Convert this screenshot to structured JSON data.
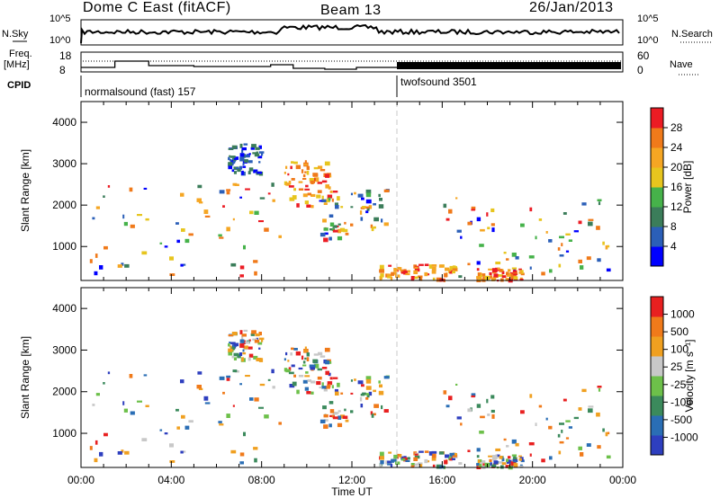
{
  "header": {
    "radar": "Dome C East (fitACF)",
    "beam": "Beam 13",
    "date": "26/Jan/2013"
  },
  "panels": {
    "nsky_label": "N.Sky",
    "nsky_ticks": [
      "10^5",
      "10^0"
    ],
    "nsearch_label": "N.Search",
    "nsearch_ticks": [
      "10^5",
      "10^0"
    ],
    "freq_label": "Freq.",
    "freq_unit": "[MHz]",
    "freq_ticks": [
      "18",
      "8"
    ],
    "nave_label": "Nave",
    "nave_ticks": [
      "60",
      "0"
    ],
    "cpid_label": "CPID",
    "cpid_modes": [
      "normalsound (fast) 157",
      "twofsound 3501"
    ]
  },
  "power_colorbar": {
    "label": "Power [dB]",
    "ticks": [
      "28",
      "24",
      "20",
      "16",
      "12",
      "8",
      "4"
    ],
    "colors": [
      "#0000ff",
      "#2b5fb8",
      "#3b7d5a",
      "#46b24a",
      "#e7c51e",
      "#f5a623",
      "#f07a1a",
      "#ec1c24"
    ]
  },
  "velocity_colorbar": {
    "label": "Velocity [m s⁻¹]",
    "ticks": [
      "1000",
      "500",
      "100",
      "25",
      "-25",
      "-100",
      "-500",
      "-1000"
    ],
    "colors": [
      "#2e3fbf",
      "#2a6eb5",
      "#3b8a5c",
      "#6dc04a",
      "#c8c8c8",
      "#f0a020",
      "#f07a1a",
      "#e82020"
    ]
  },
  "chart_data": [
    {
      "type": "heatmap",
      "name": "power",
      "ylabel": "Slant Range [km]",
      "yticks": [
        "1000",
        "2000",
        "3000",
        "4000"
      ],
      "ylim": [
        180,
        4500
      ],
      "xlim": [
        0,
        24
      ],
      "echo_regions": [
        {
          "x": [
            0.1,
            8.8
          ],
          "y": [
            300,
            2600
          ],
          "level": "mixed"
        },
        {
          "x": [
            6.5,
            8.0
          ],
          "y": [
            2800,
            3500
          ],
          "level": "low"
        },
        {
          "x": [
            9.0,
            11.0
          ],
          "y": [
            2000,
            3100
          ],
          "level": "high"
        },
        {
          "x": [
            10.5,
            13.5
          ],
          "y": [
            1200,
            2400
          ],
          "level": "mixed"
        },
        {
          "x": [
            13.2,
            16.5
          ],
          "y": [
            220,
            600
          ],
          "level": "high"
        },
        {
          "x": [
            16.0,
            23.5
          ],
          "y": [
            300,
            2200
          ],
          "level": "mixed"
        },
        {
          "x": [
            17.5,
            19.5
          ],
          "y": [
            200,
            500
          ],
          "level": "high"
        }
      ]
    },
    {
      "type": "heatmap",
      "name": "velocity",
      "ylabel": "Slant Range [km]",
      "yticks": [
        "1000",
        "2000",
        "3000",
        "4000"
      ],
      "ylim": [
        180,
        4500
      ],
      "xlim": [
        0,
        24
      ],
      "xlabel": "Time UT",
      "xticks": [
        "00:00",
        "04:00",
        "08:00",
        "12:00",
        "16:00",
        "20:00",
        "00:00"
      ]
    }
  ]
}
